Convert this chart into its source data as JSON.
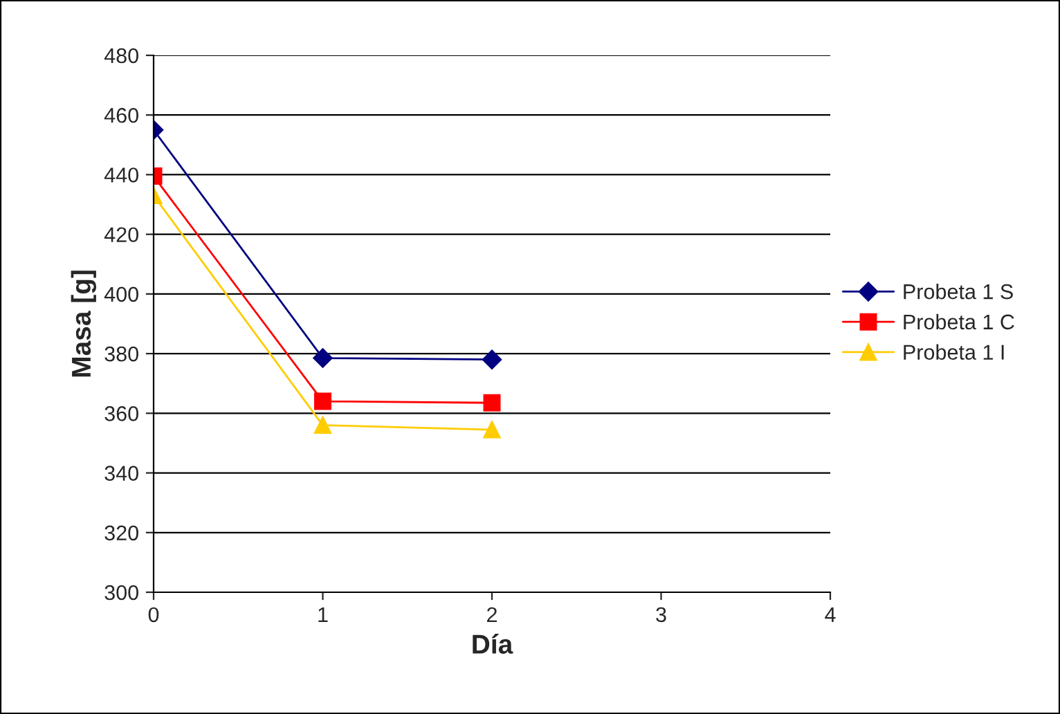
{
  "chart_data": {
    "type": "line",
    "xlabel": "Día",
    "ylabel": "Masa [g]",
    "x": [
      0,
      1,
      2
    ],
    "xlim": [
      0,
      4
    ],
    "xticks": [
      0,
      1,
      2,
      3,
      4
    ],
    "ylim": [
      300,
      480
    ],
    "yticks": [
      300,
      320,
      340,
      360,
      380,
      400,
      420,
      440,
      460,
      480
    ],
    "grid": "y",
    "legend": "right",
    "series": [
      {
        "name": "Probeta 1 S",
        "color": "#000080",
        "marker": "diamond",
        "values": [
          455,
          378.5,
          378
        ]
      },
      {
        "name": "Probeta 1 C",
        "color": "#ff0000",
        "marker": "square",
        "values": [
          439.5,
          364,
          363.5
        ]
      },
      {
        "name": "Probeta 1 I",
        "color": "#ffcc00",
        "marker": "triangle",
        "values": [
          433,
          356,
          354.5
        ]
      }
    ]
  }
}
